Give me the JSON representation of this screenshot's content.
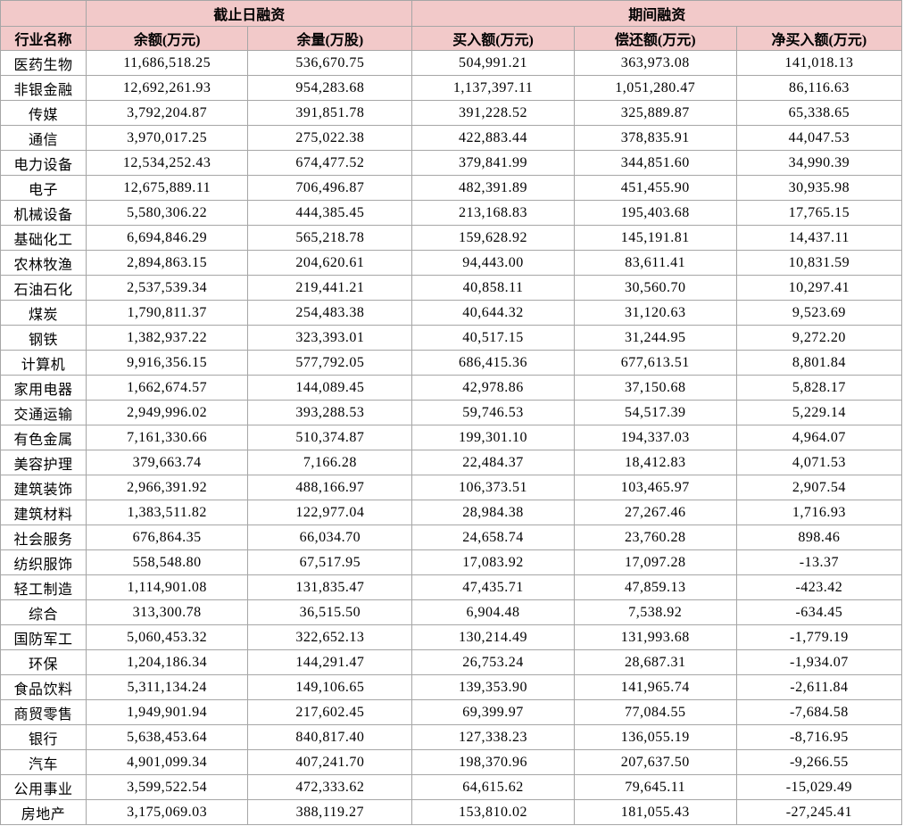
{
  "table": {
    "group_headers": [
      "截止日融资",
      "期间融资"
    ],
    "columns": [
      "行业名称",
      "余额(万元)",
      "余量(万股)",
      "买入额(万元)",
      "偿还额(万元)",
      "净买入额(万元)"
    ],
    "rows": [
      [
        "医药生物",
        "11,686,518.25",
        "536,670.75",
        "504,991.21",
        "363,973.08",
        "141,018.13"
      ],
      [
        "非银金融",
        "12,692,261.93",
        "954,283.68",
        "1,137,397.11",
        "1,051,280.47",
        "86,116.63"
      ],
      [
        "传媒",
        "3,792,204.87",
        "391,851.78",
        "391,228.52",
        "325,889.87",
        "65,338.65"
      ],
      [
        "通信",
        "3,970,017.25",
        "275,022.38",
        "422,883.44",
        "378,835.91",
        "44,047.53"
      ],
      [
        "电力设备",
        "12,534,252.43",
        "674,477.52",
        "379,841.99",
        "344,851.60",
        "34,990.39"
      ],
      [
        "电子",
        "12,675,889.11",
        "706,496.87",
        "482,391.89",
        "451,455.90",
        "30,935.98"
      ],
      [
        "机械设备",
        "5,580,306.22",
        "444,385.45",
        "213,168.83",
        "195,403.68",
        "17,765.15"
      ],
      [
        "基础化工",
        "6,694,846.29",
        "565,218.78",
        "159,628.92",
        "145,191.81",
        "14,437.11"
      ],
      [
        "农林牧渔",
        "2,894,863.15",
        "204,620.61",
        "94,443.00",
        "83,611.41",
        "10,831.59"
      ],
      [
        "石油石化",
        "2,537,539.34",
        "219,441.21",
        "40,858.11",
        "30,560.70",
        "10,297.41"
      ],
      [
        "煤炭",
        "1,790,811.37",
        "254,483.38",
        "40,644.32",
        "31,120.63",
        "9,523.69"
      ],
      [
        "钢铁",
        "1,382,937.22",
        "323,393.01",
        "40,517.15",
        "31,244.95",
        "9,272.20"
      ],
      [
        "计算机",
        "9,916,356.15",
        "577,792.05",
        "686,415.36",
        "677,613.51",
        "8,801.84"
      ],
      [
        "家用电器",
        "1,662,674.57",
        "144,089.45",
        "42,978.86",
        "37,150.68",
        "5,828.17"
      ],
      [
        "交通运输",
        "2,949,996.02",
        "393,288.53",
        "59,746.53",
        "54,517.39",
        "5,229.14"
      ],
      [
        "有色金属",
        "7,161,330.66",
        "510,374.87",
        "199,301.10",
        "194,337.03",
        "4,964.07"
      ],
      [
        "美容护理",
        "379,663.74",
        "7,166.28",
        "22,484.37",
        "18,412.83",
        "4,071.53"
      ],
      [
        "建筑装饰",
        "2,966,391.92",
        "488,166.97",
        "106,373.51",
        "103,465.97",
        "2,907.54"
      ],
      [
        "建筑材料",
        "1,383,511.82",
        "122,977.04",
        "28,984.38",
        "27,267.46",
        "1,716.93"
      ],
      [
        "社会服务",
        "676,864.35",
        "66,034.70",
        "24,658.74",
        "23,760.28",
        "898.46"
      ],
      [
        "纺织服饰",
        "558,548.80",
        "67,517.95",
        "17,083.92",
        "17,097.28",
        "-13.37"
      ],
      [
        "轻工制造",
        "1,114,901.08",
        "131,835.47",
        "47,435.71",
        "47,859.13",
        "-423.42"
      ],
      [
        "综合",
        "313,300.78",
        "36,515.50",
        "6,904.48",
        "7,538.92",
        "-634.45"
      ],
      [
        "国防军工",
        "5,060,453.32",
        "322,652.13",
        "130,214.49",
        "131,993.68",
        "-1,779.19"
      ],
      [
        "环保",
        "1,204,186.34",
        "144,291.47",
        "26,753.24",
        "28,687.31",
        "-1,934.07"
      ],
      [
        "食品饮料",
        "5,311,134.24",
        "149,106.65",
        "139,353.90",
        "141,965.74",
        "-2,611.84"
      ],
      [
        "商贸零售",
        "1,949,901.94",
        "217,602.45",
        "69,399.97",
        "77,084.55",
        "-7,684.58"
      ],
      [
        "银行",
        "5,638,453.64",
        "840,817.40",
        "127,338.23",
        "136,055.19",
        "-8,716.95"
      ],
      [
        "汽车",
        "4,901,099.34",
        "407,241.70",
        "198,370.96",
        "207,637.50",
        "-9,266.55"
      ],
      [
        "公用事业",
        "3,599,522.54",
        "472,333.62",
        "64,615.62",
        "79,645.11",
        "-15,029.49"
      ],
      [
        "房地产",
        "3,175,069.03",
        "388,119.27",
        "153,810.02",
        "181,055.43",
        "-27,245.41"
      ]
    ]
  }
}
